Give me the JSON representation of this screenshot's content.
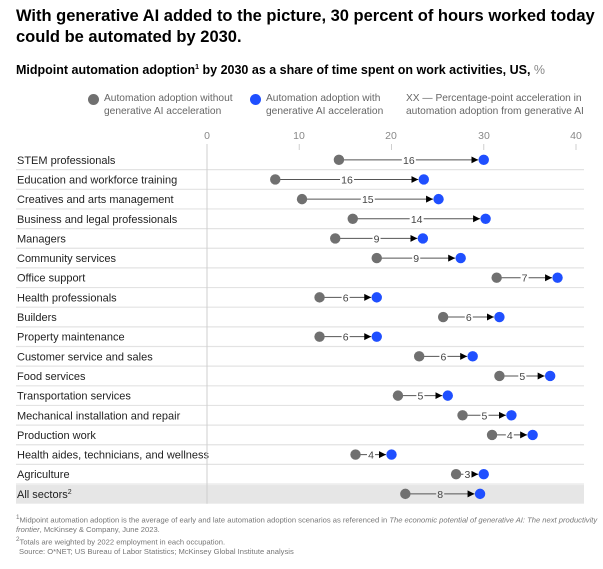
{
  "header": {
    "title": "With generative AI added to the picture, 30 percent of hours worked today could be automated by 2030.",
    "subtitle_main": "Midpoint automation adoption",
    "subtitle_sup": "1",
    "subtitle_rest": " by 2030 as a share of time spent on work activities, US, ",
    "subtitle_unit": "%"
  },
  "legend": {
    "without": "Automation adoption without generative AI acceleration",
    "with": "Automation adoption with generative AI acceleration",
    "delta": "XX — Percentage-point acceleration in automation adoption from generative AI"
  },
  "colors": {
    "without": "#707070",
    "with": "#1f4fff",
    "arrow": "#000000",
    "highlight_row": "#e6e6e6",
    "gridline": "#e3e3e3"
  },
  "chart_data": {
    "type": "dumbbell",
    "title": "With generative AI added to the picture, 30 percent of hours worked today could be automated by 2030.",
    "subtitle": "Midpoint automation adoption by 2030 as a share of time spent on work activities, US, %",
    "xlabel": "",
    "ylabel": "",
    "xlim": [
      0,
      40
    ],
    "xticks": [
      0,
      10,
      20,
      30,
      40
    ],
    "legend_position": "top",
    "series": [
      {
        "name": "Automation adoption without generative AI acceleration",
        "key": "without"
      },
      {
        "name": "Automation adoption with generative AI acceleration",
        "key": "with"
      }
    ],
    "rows": [
      {
        "category": "STEM professionals",
        "without": 14.3,
        "with": 30.0,
        "delta": 16
      },
      {
        "category": "Education and workforce training",
        "without": 7.4,
        "with": 23.5,
        "delta": 16
      },
      {
        "category": "Creatives and arts management",
        "without": 10.3,
        "with": 25.1,
        "delta": 15
      },
      {
        "category": "Business and legal professionals",
        "without": 15.8,
        "with": 30.2,
        "delta": 14
      },
      {
        "category": "Managers",
        "without": 13.9,
        "with": 23.4,
        "delta": 9
      },
      {
        "category": "Community services",
        "without": 18.4,
        "with": 27.5,
        "delta": 9
      },
      {
        "category": "Office support",
        "without": 31.4,
        "with": 38.0,
        "delta": 7
      },
      {
        "category": "Health professionals",
        "without": 12.2,
        "with": 18.4,
        "delta": 6
      },
      {
        "category": "Builders",
        "without": 25.6,
        "with": 31.7,
        "delta": 6
      },
      {
        "category": "Property maintenance",
        "without": 12.2,
        "with": 18.4,
        "delta": 6
      },
      {
        "category": "Customer service and sales",
        "without": 23.0,
        "with": 28.8,
        "delta": 6
      },
      {
        "category": "Food services",
        "without": 31.7,
        "with": 37.2,
        "delta": 5
      },
      {
        "category": "Transportation services",
        "without": 20.7,
        "with": 26.1,
        "delta": 5
      },
      {
        "category": "Mechanical installation and repair",
        "without": 27.7,
        "with": 33.0,
        "delta": 5
      },
      {
        "category": "Production work",
        "without": 30.9,
        "with": 35.3,
        "delta": 4
      },
      {
        "category": "Health aides, technicians, and wellness",
        "without": 16.1,
        "with": 20.0,
        "delta": 4
      },
      {
        "category": "Agriculture",
        "without": 27.0,
        "with": 30.0,
        "delta": 3
      },
      {
        "category": "All sectors",
        "category_sup": "2",
        "without": 21.5,
        "with": 29.6,
        "delta": 8,
        "highlight": true
      }
    ]
  },
  "footnotes": {
    "note1_sup": "1",
    "note1_text": "Midpoint automation adoption is the average of early and late automation adoption scenarios as referenced in ",
    "note1_italic": "The economic potential of generative AI: The next productivity frontier",
    "note1_end": ", McKinsey & Company, June 2023.",
    "note2_sup": "2",
    "note2_text": "Totals are weighted by 2022 employment in each occupation.",
    "source": "Source: O*NET; US Bureau of Labor Statistics; McKinsey Global Institute analysis"
  }
}
